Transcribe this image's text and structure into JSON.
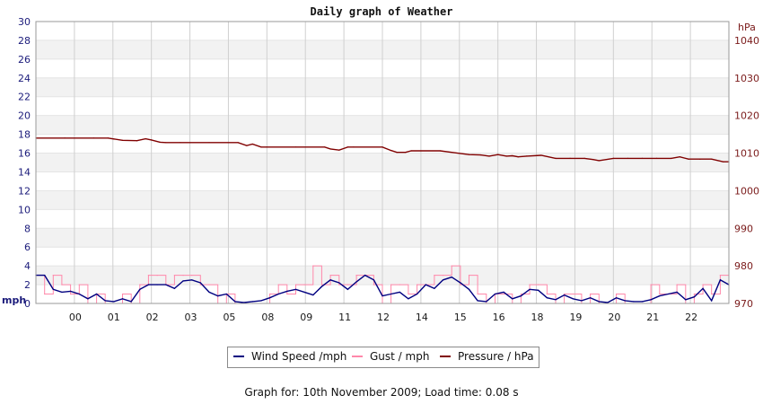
{
  "chart_data": {
    "type": "line",
    "title": "Daily graph of Weather",
    "left_axis": {
      "label": "mph",
      "min": 0,
      "max": 30,
      "ticks": [
        0,
        2,
        4,
        6,
        8,
        10,
        12,
        14,
        16,
        18,
        20,
        22,
        24,
        26,
        28,
        30
      ]
    },
    "right_axis": {
      "label": "hPa",
      "min": 970,
      "max": 1045,
      "ticks": [
        970,
        980,
        990,
        1000,
        1010,
        1020,
        1030,
        1040
      ]
    },
    "x_axis": {
      "start": 23,
      "end": 47,
      "tick_labels": [
        "00",
        "01",
        "02",
        "03",
        "05",
        "08",
        "09",
        "11",
        "12",
        "14",
        "15",
        "16",
        "18",
        "19",
        "20",
        "21",
        "22"
      ]
    },
    "grid": true,
    "legend_placement": "bottom",
    "series": [
      {
        "name": "Wind Speed /mph",
        "axis": "left",
        "color": "#000080",
        "x": [
          23.0,
          23.3,
          23.6,
          23.9,
          24.2,
          24.5,
          24.8,
          25.1,
          25.4,
          25.7,
          26.0,
          26.3,
          26.6,
          26.9,
          27.2,
          27.5,
          27.8,
          28.1,
          28.4,
          28.7,
          29.0,
          29.3,
          29.6,
          29.9,
          30.2,
          30.5,
          30.8,
          31.1,
          31.4,
          31.7,
          32.0,
          32.3,
          32.6,
          32.9,
          33.2,
          33.5,
          33.8,
          34.1,
          34.4,
          34.7,
          35.0,
          35.3,
          35.6,
          35.9,
          36.2,
          36.5,
          36.8,
          37.1,
          37.4,
          37.7,
          38.0,
          38.3,
          38.6,
          38.9,
          39.2,
          39.5,
          39.8,
          40.1,
          40.4,
          40.7,
          41.0,
          41.3,
          41.6,
          41.9,
          42.2,
          42.5,
          42.8,
          43.1,
          43.4,
          43.7,
          44.0,
          44.3,
          44.6,
          44.9,
          45.2,
          45.5,
          45.8,
          46.1,
          46.4,
          46.7,
          47.0
        ],
        "values": [
          3,
          3,
          1.5,
          1.2,
          1.3,
          1.0,
          0.5,
          1.0,
          0.3,
          0.2,
          0.5,
          0.2,
          1.5,
          2.0,
          2.0,
          2.0,
          1.6,
          2.4,
          2.5,
          2.2,
          1.2,
          0.8,
          1.0,
          0.2,
          0.1,
          0.2,
          0.3,
          0.6,
          1.0,
          1.3,
          1.5,
          1.2,
          0.9,
          1.8,
          2.5,
          2.2,
          1.5,
          2.3,
          3.0,
          2.5,
          0.8,
          1.0,
          1.2,
          0.5,
          1.0,
          2.0,
          1.6,
          2.5,
          2.8,
          2.2,
          1.5,
          0.3,
          0.2,
          1.0,
          1.2,
          0.5,
          0.8,
          1.5,
          1.4,
          0.6,
          0.4,
          0.9,
          0.5,
          0.3,
          0.6,
          0.2,
          0.1,
          0.6,
          0.3,
          0.2,
          0.2,
          0.4,
          0.8,
          1.0,
          1.2,
          0.4,
          0.7,
          1.6,
          0.3,
          2.5,
          2.0
        ]
      },
      {
        "name": "Gust / mph",
        "axis": "left",
        "color": "#ff88aa",
        "x": [
          23.0,
          23.3,
          23.6,
          23.9,
          24.2,
          24.5,
          24.8,
          25.1,
          25.4,
          25.7,
          26.0,
          26.3,
          26.6,
          26.9,
          27.2,
          27.5,
          27.8,
          28.1,
          28.4,
          28.7,
          29.0,
          29.3,
          29.6,
          29.9,
          30.2,
          30.5,
          30.8,
          31.1,
          31.4,
          31.7,
          32.0,
          32.3,
          32.6,
          32.9,
          33.2,
          33.5,
          33.8,
          34.1,
          34.4,
          34.7,
          35.0,
          35.3,
          35.6,
          35.9,
          36.2,
          36.5,
          36.8,
          37.1,
          37.4,
          37.7,
          38.0,
          38.3,
          38.6,
          38.9,
          39.2,
          39.5,
          39.8,
          40.1,
          40.4,
          40.7,
          41.0,
          41.3,
          41.6,
          41.9,
          42.2,
          42.5,
          42.8,
          43.1,
          43.4,
          43.7,
          44.0,
          44.3,
          44.6,
          44.9,
          45.2,
          45.5,
          45.8,
          46.1,
          46.4,
          46.7,
          47.0
        ],
        "values": [
          3,
          1,
          3,
          2,
          1,
          2,
          0,
          1,
          0,
          0,
          1,
          0,
          2,
          3,
          3,
          2,
          3,
          3,
          3,
          2,
          2,
          0,
          1,
          0,
          0,
          0,
          0,
          1,
          2,
          1,
          2,
          2,
          4,
          2,
          3,
          2,
          2,
          3,
          3,
          2,
          0,
          2,
          2,
          1,
          2,
          2,
          3,
          3,
          4,
          2,
          3,
          1,
          0,
          1,
          1,
          0,
          1,
          2,
          2,
          1,
          0,
          1,
          1,
          0,
          1,
          0,
          0,
          1,
          0,
          0,
          0,
          2,
          1,
          1,
          2,
          0,
          1,
          2,
          1,
          3,
          2
        ]
      },
      {
        "name": "Pressure / hPa",
        "axis": "right",
        "color": "#800000",
        "x": [
          23.0,
          24.0,
          25.0,
          25.5,
          26.0,
          26.5,
          26.8,
          27.0,
          27.3,
          27.5,
          28.0,
          29.0,
          30.0,
          30.3,
          30.5,
          30.8,
          31.0,
          32.0,
          33.0,
          33.2,
          33.5,
          33.8,
          34.0,
          35.0,
          35.3,
          35.5,
          35.8,
          36.0,
          37.0,
          38.0,
          38.4,
          38.7,
          39.0,
          39.3,
          39.5,
          39.7,
          40.0,
          40.5,
          41.0,
          41.5,
          42.0,
          42.3,
          42.5,
          43.0,
          43.5,
          44.0,
          44.5,
          45.0,
          45.3,
          45.6,
          46.0,
          46.4,
          46.8,
          47.0
        ],
        "values": [
          1014,
          1014,
          1014,
          1014,
          1013.4,
          1013.3,
          1013.8,
          1013.5,
          1012.9,
          1012.8,
          1012.8,
          1012.8,
          1012.8,
          1012,
          1012.4,
          1011.6,
          1011.6,
          1011.6,
          1011.6,
          1011.1,
          1010.8,
          1011.6,
          1011.6,
          1011.6,
          1010.7,
          1010.2,
          1010.2,
          1010.6,
          1010.6,
          1009.6,
          1009.5,
          1009.2,
          1009.6,
          1009.2,
          1009.3,
          1009,
          1009.2,
          1009.4,
          1008.6,
          1008.6,
          1008.6,
          1008.3,
          1008.0,
          1008.6,
          1008.6,
          1008.6,
          1008.6,
          1008.6,
          1009.0,
          1008.4,
          1008.4,
          1008.4,
          1007.7,
          1007.7
        ]
      }
    ]
  },
  "footer": {
    "text": "Graph for: 10th November 2009; Load time: 0.08 s"
  }
}
